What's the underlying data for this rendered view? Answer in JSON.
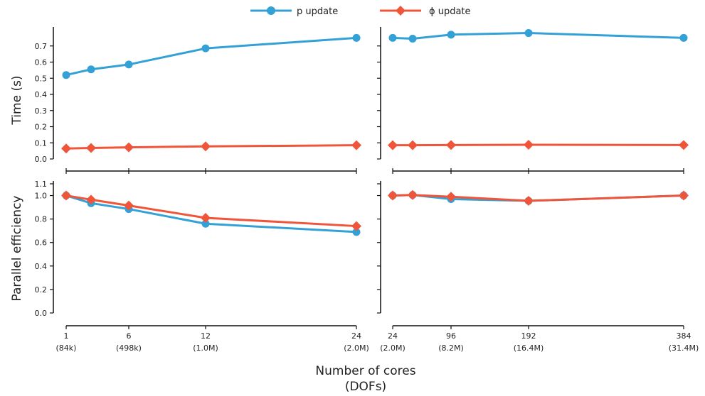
{
  "legend": {
    "placement": "top-center",
    "items": [
      {
        "label": "p update",
        "marker": "circle",
        "color": "#34a1d6"
      },
      {
        "label": "ϕ update",
        "marker": "diamond",
        "color": "#f0553a"
      }
    ]
  },
  "xlabel": {
    "line1": "Number of cores",
    "line2": "(DOFs)"
  },
  "chart_data": [
    {
      "type": "line",
      "panel": "top-left",
      "ylabel": "Time (s)",
      "ylim": [
        0,
        0.8
      ],
      "yticks": [
        "0.0",
        "0.1",
        "0.2",
        "0.3",
        "0.4",
        "0.5",
        "0.6",
        "0.7"
      ],
      "xlim": [
        1,
        24
      ],
      "xticks": [
        {
          "value": 1,
          "label": "1",
          "dof": "(84k)"
        },
        {
          "value": 6,
          "label": "6",
          "dof": "(498k)"
        },
        {
          "value": 12,
          "label": "12",
          "dof": "(1.0M)"
        },
        {
          "value": 24,
          "label": "24",
          "dof": "(2.0M)"
        }
      ],
      "x": [
        1,
        3,
        6,
        12,
        24
      ],
      "series": [
        {
          "name": "p update",
          "values": [
            0.52,
            0.555,
            0.585,
            0.685,
            0.75
          ]
        },
        {
          "name": "ϕ update",
          "values": [
            0.065,
            0.068,
            0.072,
            0.078,
            0.085
          ]
        }
      ]
    },
    {
      "type": "line",
      "panel": "top-right",
      "ylabel": "",
      "ylim": [
        0,
        0.8
      ],
      "xlim": [
        24,
        384
      ],
      "xticks": [
        {
          "value": 24,
          "label": "24",
          "dof": "(2.0M)"
        },
        {
          "value": 96,
          "label": "96",
          "dof": "(8.2M)"
        },
        {
          "value": 192,
          "label": "192",
          "dof": "(16.4M)"
        },
        {
          "value": 384,
          "label": "384",
          "dof": "(31.4M)"
        }
      ],
      "x": [
        24,
        48,
        96,
        192,
        384
      ],
      "series": [
        {
          "name": "p update",
          "values": [
            0.75,
            0.745,
            0.77,
            0.78,
            0.75
          ]
        },
        {
          "name": "ϕ update",
          "values": [
            0.085,
            0.085,
            0.086,
            0.088,
            0.086
          ]
        }
      ]
    },
    {
      "type": "line",
      "panel": "bottom-left",
      "ylabel": "Parallel efficiency",
      "ylim": [
        0,
        1.1
      ],
      "yticks": [
        "0.0",
        "0.2",
        "0.4",
        "0.6",
        "0.8",
        "1.0",
        "1.1"
      ],
      "xlim": [
        1,
        24
      ],
      "x": [
        1,
        3,
        6,
        12,
        24
      ],
      "series": [
        {
          "name": "p update",
          "values": [
            1.0,
            0.935,
            0.885,
            0.76,
            0.69
          ]
        },
        {
          "name": "ϕ update",
          "values": [
            1.0,
            0.965,
            0.915,
            0.81,
            0.74
          ]
        }
      ]
    },
    {
      "type": "line",
      "panel": "bottom-right",
      "ylabel": "",
      "ylim": [
        0,
        1.1
      ],
      "xlim": [
        24,
        384
      ],
      "x": [
        24,
        48,
        96,
        192,
        384
      ],
      "series": [
        {
          "name": "p update",
          "values": [
            1.0,
            1.005,
            0.97,
            0.955,
            1.0
          ]
        },
        {
          "name": "ϕ update",
          "values": [
            1.0,
            1.005,
            0.99,
            0.955,
            1.0
          ]
        }
      ]
    }
  ]
}
